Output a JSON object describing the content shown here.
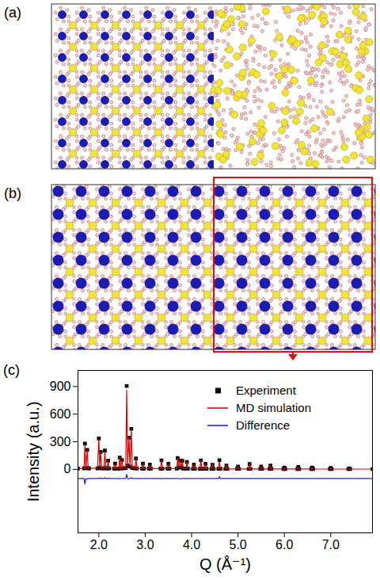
{
  "panels": [
    {
      "label": "(a)"
    },
    {
      "label": "(b)"
    }
  ],
  "chart_data": {
    "type": "line",
    "panel_label": "(c)",
    "x_label": "Q (Å⁻¹)",
    "y_label": "Intensity (a.u.)",
    "xlim": [
      1.55,
      7.9
    ],
    "xticks": [
      2,
      3,
      4,
      5,
      6,
      7
    ],
    "ylim": [
      -690,
      1075
    ],
    "yticks": [
      0,
      300,
      600,
      900
    ],
    "grid": false,
    "legend": "upper right",
    "x": [
      1.55,
      1.68,
      1.7,
      1.72,
      1.75,
      1.77,
      1.79,
      1.97,
      2.0,
      2.02,
      2.04,
      2.06,
      2.11,
      2.13,
      2.15,
      2.18,
      2.2,
      2.22,
      2.33,
      2.35,
      2.37,
      2.43,
      2.45,
      2.47,
      2.5,
      2.52,
      2.58,
      2.6,
      2.62,
      2.65,
      2.67,
      2.7,
      2.72,
      2.78,
      2.8,
      2.82,
      2.93,
      2.95,
      2.97,
      3.08,
      3.1,
      3.12,
      3.33,
      3.35,
      3.37,
      3.48,
      3.5,
      3.52,
      3.68,
      3.7,
      3.72,
      3.75,
      3.78,
      3.8,
      3.82,
      3.88,
      3.9,
      3.92,
      4.03,
      4.05,
      4.07,
      4.18,
      4.2,
      4.22,
      4.28,
      4.3,
      4.32,
      4.43,
      4.45,
      4.47,
      4.58,
      4.6,
      4.62,
      4.73,
      4.75,
      4.77,
      4.98,
      5.0,
      5.02,
      5.23,
      5.25,
      5.27,
      5.48,
      5.5,
      5.52,
      5.68,
      5.7,
      5.72,
      5.98,
      6.0,
      6.02,
      6.28,
      6.3,
      6.32,
      6.58,
      6.6,
      6.62,
      6.98,
      7.0,
      7.02,
      7.38,
      7.4,
      7.42,
      7.9
    ],
    "series": [
      {
        "name": "Experiment",
        "type": "scatter",
        "marker": "square",
        "color": "#000000",
        "values": [
          8,
          10,
          280,
          15,
          210,
          12,
          10,
          10,
          335,
          20,
          190,
          10,
          10,
          205,
          15,
          10,
          95,
          10,
          8,
          62,
          8,
          8,
          128,
          12,
          102,
          10,
          15,
          905,
          40,
          345,
          30,
          440,
          15,
          10,
          118,
          10,
          8,
          62,
          8,
          8,
          52,
          8,
          8,
          98,
          8,
          8,
          60,
          8,
          8,
          122,
          20,
          98,
          20,
          92,
          8,
          8,
          80,
          8,
          6,
          52,
          6,
          6,
          98,
          6,
          6,
          60,
          6,
          6,
          50,
          6,
          6,
          100,
          6,
          5,
          40,
          5,
          5,
          30,
          5,
          5,
          58,
          5,
          5,
          30,
          5,
          5,
          40,
          5,
          4,
          20,
          4,
          4,
          25,
          4,
          4,
          20,
          4,
          3,
          15,
          3,
          3,
          10,
          3,
          3
        ]
      },
      {
        "name": "MD simulation",
        "type": "line",
        "line_style": "solid",
        "color": "#e00000",
        "values": [
          8,
          10,
          270,
          15,
          205,
          12,
          10,
          10,
          330,
          20,
          185,
          10,
          10,
          195,
          15,
          10,
          90,
          10,
          8,
          60,
          8,
          8,
          130,
          12,
          100,
          10,
          15,
          860,
          40,
          350,
          30,
          430,
          15,
          10,
          120,
          10,
          8,
          60,
          8,
          8,
          50,
          8,
          8,
          100,
          8,
          8,
          60,
          8,
          8,
          120,
          20,
          100,
          20,
          90,
          8,
          8,
          80,
          8,
          6,
          50,
          6,
          6,
          100,
          6,
          6,
          60,
          6,
          6,
          50,
          6,
          6,
          90,
          6,
          5,
          40,
          5,
          5,
          30,
          5,
          5,
          60,
          5,
          5,
          30,
          5,
          5,
          40,
          5,
          4,
          20,
          4,
          4,
          25,
          4,
          4,
          20,
          4,
          3,
          15,
          3,
          3,
          10,
          3,
          3
        ]
      },
      {
        "name": "Difference",
        "type": "line",
        "line_style": "solid",
        "color": "#1a1aff",
        "values": [
          -100,
          -100,
          -160,
          -100,
          -105,
          -100,
          -100,
          -100,
          -95,
          -100,
          -95,
          -100,
          -100,
          -90,
          -100,
          -100,
          -95,
          -100,
          -100,
          -98,
          -100,
          -100,
          -102,
          -100,
          -98,
          -100,
          -100,
          -55,
          -100,
          -105,
          -100,
          -90,
          -100,
          -100,
          -102,
          -100,
          -100,
          -98,
          -100,
          -100,
          -98,
          -100,
          -100,
          -102,
          -100,
          -100,
          -100,
          -100,
          -100,
          -98,
          -100,
          -102,
          -100,
          -98,
          -100,
          -100,
          -100,
          -100,
          -100,
          -98,
          -100,
          -100,
          -102,
          -100,
          -100,
          -100,
          -100,
          -100,
          -100,
          -100,
          -100,
          -80,
          -100,
          -100,
          -100,
          -100,
          -100,
          -100,
          -100,
          -100,
          -100,
          -100,
          -100,
          -100,
          -100,
          -100,
          -100,
          -100,
          -100,
          -100,
          -100,
          -100,
          -100,
          -100,
          -100,
          -100,
          -100,
          -100,
          -100,
          -100,
          -100,
          -100,
          -100,
          -100
        ]
      }
    ]
  }
}
